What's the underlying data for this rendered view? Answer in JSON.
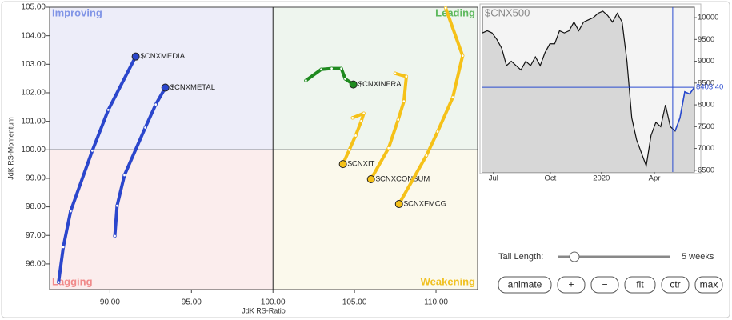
{
  "chart_data": [
    {
      "type": "scatter",
      "xlabel": "JdK RS-Ratio",
      "ylabel": "JdK RS-Momentum",
      "xlim": [
        86.3,
        112.55
      ],
      "ylim": [
        95.1,
        105.0
      ],
      "center": [
        100,
        100
      ],
      "xticks": [
        {
          "value": 90,
          "label": "90.00"
        },
        {
          "value": 95,
          "label": "95.00"
        },
        {
          "value": 100,
          "label": "100.00"
        },
        {
          "value": 105,
          "label": "105.00"
        },
        {
          "value": 110,
          "label": "110.00"
        }
      ],
      "yticks": [
        {
          "value": 96,
          "label": "96.00"
        },
        {
          "value": 97,
          "label": "97.00"
        },
        {
          "value": 98,
          "label": "98.00"
        },
        {
          "value": 99,
          "label": "99.00"
        },
        {
          "value": 100,
          "label": "100.00"
        },
        {
          "value": 101,
          "label": "101.00"
        },
        {
          "value": 102,
          "label": "102.00"
        },
        {
          "value": 103,
          "label": "103.00"
        },
        {
          "value": 104,
          "label": "104.00"
        },
        {
          "value": 105,
          "label": "105.00"
        }
      ],
      "quadrants": [
        {
          "label": "Improving",
          "corner": "top-left",
          "color": "#8094e6",
          "fill": "#ededf9"
        },
        {
          "label": "Leading",
          "corner": "top-right",
          "color": "#5cb85c",
          "fill": "#eef5ee"
        },
        {
          "label": "Lagging",
          "corner": "bottom-left",
          "color": "#f08a8a",
          "fill": "#fbeded"
        },
        {
          "label": "Weakening",
          "corner": "bottom-right",
          "color": "#f0c020",
          "fill": "#fbf9ec"
        }
      ],
      "series": [
        {
          "name": "$CNXMEDIA",
          "color": "#2b46cc",
          "x": [
            86.85,
            87.14,
            87.59,
            88.92,
            89.9,
            91.58
          ],
          "values": [
            95.36,
            96.59,
            97.85,
            99.97,
            101.4,
            103.27
          ]
        },
        {
          "name": "$CNXMETAL",
          "color": "#2b46cc",
          "x": [
            90.3,
            90.44,
            90.89,
            92.17,
            92.81,
            93.4
          ],
          "values": [
            96.98,
            98.04,
            99.11,
            100.78,
            101.59,
            102.18
          ]
        },
        {
          "name": "$CNXINFRA",
          "color": "#1f8a1f",
          "x": [
            102.02,
            102.96,
            103.6,
            104.19,
            104.43,
            104.93
          ],
          "values": [
            102.43,
            102.82,
            102.85,
            102.85,
            102.49,
            102.29
          ]
        },
        {
          "name": "$CNXIT",
          "color": "#f5c118",
          "x": [
            104.88,
            105.57,
            105.42,
            105.07,
            104.68,
            104.29
          ],
          "values": [
            101.12,
            101.28,
            101.01,
            100.5,
            100.0,
            99.5
          ]
        },
        {
          "name": "$CNXCONSUM",
          "color": "#f5c118",
          "x": [
            107.49,
            108.18,
            108.03,
            107.68,
            107.09,
            106.01
          ],
          "values": [
            102.68,
            102.57,
            101.7,
            101.06,
            100.06,
            98.97
          ]
        },
        {
          "name": "$CNXFMCG",
          "color": "#f5c118",
          "x": [
            110.59,
            111.63,
            111.03,
            110.1,
            109.41,
            107.73
          ],
          "values": [
            104.97,
            103.3,
            101.84,
            100.64,
            99.8,
            98.1
          ]
        }
      ]
    },
    {
      "type": "line",
      "title": "$CNX500",
      "xlim": [
        0,
        44
      ],
      "ylim": [
        6460,
        10240
      ],
      "yticks": [
        6500,
        7000,
        7500,
        8000,
        8500,
        9000,
        9500,
        10000
      ],
      "xticks": [
        {
          "value": 2.3,
          "label": "Jul"
        },
        {
          "value": 14.1,
          "label": "Oct"
        },
        {
          "value": 24.7,
          "label": "2020"
        },
        {
          "value": 35.7,
          "label": "Apr"
        }
      ],
      "x": [
        0,
        1,
        2,
        3,
        4,
        5,
        6,
        7,
        8,
        9,
        10,
        11,
        12,
        13,
        14,
        15,
        16,
        17,
        18,
        19,
        20,
        21,
        22,
        23,
        24,
        25,
        26,
        27,
        28,
        29,
        30,
        31,
        32,
        33,
        34,
        35,
        36,
        37,
        38,
        39,
        40,
        41,
        42,
        43,
        44
      ],
      "values": [
        9650,
        9700,
        9650,
        9500,
        9300,
        8900,
        9000,
        8900,
        8800,
        9000,
        8900,
        9100,
        8900,
        9200,
        9400,
        9400,
        9700,
        9650,
        9700,
        9900,
        9700,
        9900,
        9950,
        10000,
        10100,
        10150,
        10050,
        9900,
        10100,
        9900,
        9000,
        7700,
        7200,
        6900,
        6600,
        7300,
        7600,
        7500,
        8000,
        7500,
        7400,
        7700,
        8300,
        8250,
        8403.4
      ],
      "color": "#111",
      "cursor_x": 39.5,
      "reference_line": {
        "value": 8403.4,
        "label": "8403.40",
        "color": "#2a4bd0"
      }
    }
  ],
  "controls": {
    "tail_label": "Tail Length:",
    "tail_value": "5 weeks",
    "buttons": [
      "animate",
      "+",
      "−",
      "fit",
      "ctr",
      "max"
    ]
  }
}
